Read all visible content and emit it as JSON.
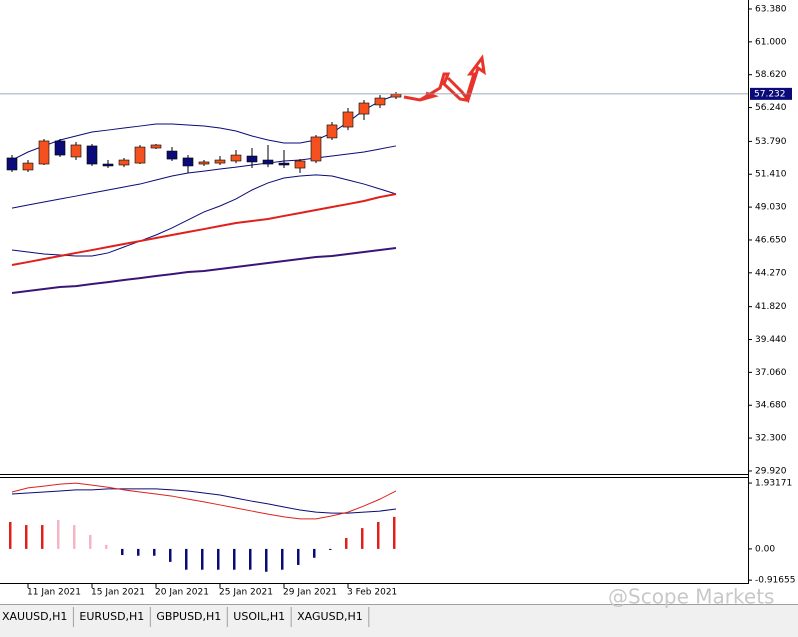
{
  "chart_data": [
    {
      "type": "candlestick",
      "categories": [
        null,
        "11 Jan 2021",
        null,
        null,
        null,
        "15 Jan 2021",
        null,
        null,
        null,
        "20 Jan 2021",
        null,
        null,
        null,
        "25 Jan 2021",
        null,
        null,
        null,
        "29 Jan 2021",
        null,
        null,
        null,
        "3 Feb 2021",
        null,
        null,
        null
      ],
      "open": [
        52.59,
        51.72,
        52.15,
        53.82,
        52.66,
        53.46,
        52.15,
        52.08,
        52.22,
        53.31,
        53.09,
        52.59,
        52.15,
        52.22,
        52.37,
        52.73,
        52.44,
        52.22,
        51.86,
        52.37,
        54.04,
        54.83,
        55.77,
        56.43,
        57.0
      ],
      "close": [
        51.72,
        52.22,
        53.82,
        52.8,
        53.53,
        52.15,
        52.01,
        52.44,
        53.38,
        53.53,
        52.51,
        52.01,
        52.3,
        52.44,
        52.8,
        52.3,
        52.15,
        52.08,
        52.37,
        54.11,
        54.98,
        55.92,
        56.57,
        56.93,
        57.22
      ],
      "high": [
        52.8,
        52.44,
        53.96,
        53.96,
        53.75,
        53.6,
        52.44,
        52.59,
        53.53,
        53.6,
        53.38,
        52.8,
        52.44,
        52.73,
        53.17,
        53.31,
        53.53,
        53.17,
        52.51,
        54.25,
        55.19,
        56.21,
        56.79,
        57.15,
        57.37
      ],
      "low": [
        51.57,
        51.57,
        52.08,
        52.66,
        52.44,
        52.01,
        51.86,
        51.93,
        52.15,
        53.24,
        52.37,
        51.5,
        52.01,
        52.08,
        52.22,
        51.86,
        51.93,
        51.86,
        51.5,
        52.22,
        53.89,
        54.61,
        55.34,
        56.21,
        56.86
      ],
      "up_color": "#f4511e",
      "down_color": "#0a0a78",
      "overlays": [
        {
          "color": "#0a0a78",
          "values": [
            52.44,
            53.02,
            53.46,
            53.89,
            54.18,
            54.47,
            54.61,
            54.76,
            54.9,
            55.05,
            55.05,
            54.98,
            54.9,
            54.76,
            54.54,
            54.18,
            53.89,
            53.67,
            53.67,
            53.89,
            54.4,
            55.19,
            56.06,
            56.71,
            57.15
          ]
        },
        {
          "color": "#0a0a78",
          "values": [
            48.96,
            49.18,
            49.4,
            49.62,
            49.83,
            50.05,
            50.27,
            50.49,
            50.7,
            50.99,
            51.28,
            51.5,
            51.64,
            51.79,
            51.93,
            52.08,
            52.22,
            52.37,
            52.44,
            52.59,
            52.73,
            52.88,
            53.02,
            53.24,
            53.46
          ]
        },
        {
          "color": "#0a0a78",
          "values": [
            45.92,
            45.78,
            45.63,
            45.56,
            45.49,
            45.49,
            45.71,
            46.14,
            46.57,
            47.01,
            47.52,
            48.1,
            48.68,
            49.11,
            49.62,
            50.27,
            50.78,
            51.14,
            51.28,
            51.36,
            51.28,
            50.99,
            50.7,
            50.34,
            49.98
          ]
        },
        {
          "color": "#e0201a",
          "width": 2,
          "values": [
            44.84,
            45.05,
            45.27,
            45.49,
            45.71,
            45.92,
            46.14,
            46.36,
            46.57,
            46.79,
            47.01,
            47.23,
            47.44,
            47.66,
            47.88,
            48.02,
            48.17,
            48.39,
            48.6,
            48.82,
            49.04,
            49.25,
            49.47,
            49.76,
            49.98
          ]
        },
        {
          "color": "#3c1478",
          "width": 2,
          "values": [
            42.81,
            42.95,
            43.1,
            43.24,
            43.31,
            43.46,
            43.6,
            43.75,
            43.89,
            44.04,
            44.18,
            44.33,
            44.4,
            44.55,
            44.69,
            44.84,
            44.98,
            45.13,
            45.27,
            45.42,
            45.49,
            45.63,
            45.78,
            45.92,
            46.07
          ]
        }
      ],
      "current_price": {
        "value": 57.232,
        "label": "57.232"
      },
      "ylim": [
        29.7,
        64.03
      ],
      "yticks": [
        {
          "value": 63.38,
          "label": "63.380"
        },
        {
          "value": 61.0,
          "label": "61.000"
        },
        {
          "value": 58.62,
          "label": "58.620"
        },
        {
          "value": 56.24,
          "label": "56.240"
        },
        {
          "value": 53.79,
          "label": "53.790"
        },
        {
          "value": 51.41,
          "label": "51.410"
        },
        {
          "value": 49.03,
          "label": "49.030"
        },
        {
          "value": 46.65,
          "label": "46.650"
        },
        {
          "value": 44.27,
          "label": "44.270"
        },
        {
          "value": 41.82,
          "label": "41.820"
        },
        {
          "value": 39.44,
          "label": "39.440"
        },
        {
          "value": 37.06,
          "label": "37.060"
        },
        {
          "value": 34.68,
          "label": "34.680"
        },
        {
          "value": 32.3,
          "label": "32.300"
        },
        {
          "value": 29.92,
          "label": "29.920"
        }
      ]
    },
    {
      "type": "macd",
      "values": [
        0.79,
        0.7,
        0.7,
        0.85,
        0.7,
        0.41,
        0.12,
        -0.18,
        -0.2,
        -0.2,
        -0.38,
        -0.61,
        -0.61,
        -0.61,
        -0.61,
        -0.61,
        -0.67,
        -0.61,
        -0.47,
        -0.26,
        -0.03,
        0.32,
        0.61,
        0.79,
        0.94
      ],
      "colors": [
        "#e0201a",
        "#e0201a",
        "#e0201a",
        "#f4b6c2",
        "#f4b6c2",
        "#f4b6c2",
        "#f4b6c2",
        "#0a0a78",
        "#0a0a78",
        "#0a0a78",
        "#0a0a78",
        "#0a0a78",
        "#0a0a78",
        "#0a0a78",
        "#0a0a78",
        "#0a0a78",
        "#0a0a78",
        "#0a0a78",
        "#0a0a78",
        "#0a0a78",
        "#0a0a78",
        "#e0201a",
        "#e0201a",
        "#e0201a",
        "#e0201a"
      ],
      "lines": [
        {
          "color": "#0a0a78",
          "values": [
            1.61,
            1.64,
            1.67,
            1.7,
            1.73,
            1.73,
            1.76,
            1.76,
            1.76,
            1.76,
            1.73,
            1.7,
            1.64,
            1.58,
            1.49,
            1.4,
            1.32,
            1.23,
            1.14,
            1.08,
            1.05,
            1.05,
            1.08,
            1.11,
            1.17
          ]
        },
        {
          "color": "#e0201a",
          "values": [
            1.67,
            1.79,
            1.84,
            1.9,
            1.93,
            1.87,
            1.81,
            1.73,
            1.67,
            1.61,
            1.55,
            1.46,
            1.38,
            1.29,
            1.2,
            1.11,
            1.02,
            0.94,
            0.88,
            0.88,
            0.97,
            1.08,
            1.26,
            1.46,
            1.7
          ]
        }
      ],
      "ylim": [
        -1.0,
        2.08
      ],
      "yticks": [
        1.93171,
        {
          "value": 0,
          "label": "0.00"
        },
        -0.91655
      ]
    }
  ],
  "tabs": [
    "XAUUSD,H1",
    "EURUSD,H1",
    "GBPUSD,H1",
    "USOIL,H1",
    "XAGUSD,H1"
  ],
  "watermark": "@Scope Markets"
}
